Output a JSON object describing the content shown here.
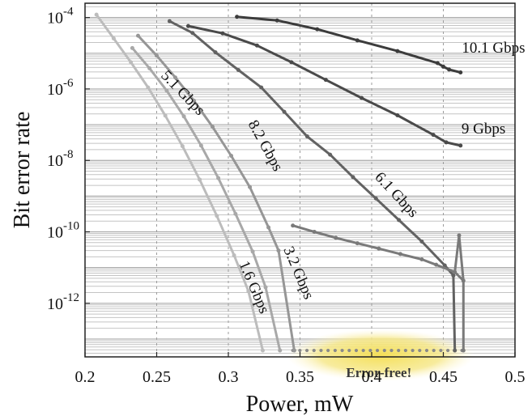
{
  "chart_data": {
    "type": "line",
    "title": "",
    "xlabel": "Power, mW",
    "ylabel": "Bit error rate",
    "xlim": [
      0.2,
      0.5
    ],
    "ylim_log10": [
      -13.5,
      -3.6
    ],
    "x_ticks": [
      {
        "value": 0.2,
        "label": "0.2"
      },
      {
        "value": 0.25,
        "label": "0.25"
      },
      {
        "value": 0.3,
        "label": "0.3"
      },
      {
        "value": 0.35,
        "label": "0.35"
      },
      {
        "value": 0.4,
        "label": "0.4"
      },
      {
        "value": 0.45,
        "label": "0.45"
      },
      {
        "value": 0.5,
        "label": "0.5"
      }
    ],
    "y_ticks": [
      {
        "log10": -4,
        "base": "10",
        "exponent": "-4"
      },
      {
        "log10": -6,
        "base": "10",
        "exponent": "-6"
      },
      {
        "log10": -8,
        "base": "10",
        "exponent": "-8"
      },
      {
        "log10": -10,
        "base": "10",
        "exponent": "-10"
      },
      {
        "log10": -12,
        "base": "10",
        "exponent": "-12"
      }
    ],
    "y_scale": "log",
    "grid": true,
    "colors": {
      "frame": "#222222",
      "grid_major": "#aaaaaa",
      "grid_minor": "#c4c4c4",
      "highlight": "#f5e36a"
    },
    "series": [
      {
        "name": "10.1 Gbps",
        "color": "#3c3c3c",
        "x": [
          0.306,
          0.334,
          0.362,
          0.39,
          0.418,
          0.446,
          0.45,
          0.454,
          0.462
        ],
        "y": [
          0.000105,
          8.3e-05,
          4.7e-05,
          2.3e-05,
          1.15e-05,
          5.3e-06,
          4.2e-06,
          3.5e-06,
          2.9e-06
        ]
      },
      {
        "name": "9 Gbps",
        "color": "#4a4a4a",
        "x": [
          0.272,
          0.296,
          0.32,
          0.344,
          0.368,
          0.393,
          0.418,
          0.443,
          0.452,
          0.462
        ],
        "y": [
          5.8e-05,
          3.6e-05,
          1.65e-05,
          5.6e-06,
          1.8e-06,
          5.6e-07,
          1.83e-07,
          5.2e-08,
          3.2e-08,
          2.6e-08
        ]
      },
      {
        "name": "8.2 Gbps",
        "color": "#626262",
        "x": [
          0.259,
          0.275,
          0.291,
          0.307,
          0.323,
          0.339,
          0.355,
          0.371,
          0.387,
          0.403,
          0.419,
          0.435,
          0.451,
          0.457
        ],
        "y": [
          7.9e-05,
          3.7e-05,
          1.06e-05,
          3.4e-06,
          1.1e-06,
          2.3e-07,
          4.7e-08,
          1.45e-08,
          3.4e-09,
          8.6e-10,
          2.14e-10,
          5.35e-11,
          1.15e-11,
          6e-12
        ]
      },
      {
        "name": "6.1 Gbps",
        "color": "#7a7a7a",
        "x": [
          0.345,
          0.36,
          0.375,
          0.39,
          0.405,
          0.42,
          0.435,
          0.445,
          0.458,
          0.464
        ],
        "y": [
          1.5e-10,
          1e-10,
          6.8e-11,
          4.8e-11,
          3.4e-11,
          2.4e-11,
          1.7e-11,
          1.2e-11,
          7.5e-12,
          4.3e-12
        ]
      },
      {
        "name": "5.1 Gbps",
        "color": "#969696",
        "x": [
          0.237,
          0.25,
          0.263,
          0.276,
          0.289,
          0.302,
          0.315,
          0.328,
          0.335
        ],
        "y": [
          3.1e-05,
          8.6e-06,
          2.1e-06,
          4.7e-07,
          8.7e-08,
          1.35e-08,
          1.8e-09,
          1.33e-10,
          3e-11
        ]
      },
      {
        "name": "3.2 Gbps",
        "color": "#a8a8a8",
        "x": [
          0.233,
          0.245,
          0.257,
          0.269,
          0.281,
          0.293,
          0.305,
          0.317,
          0.326
        ],
        "y": [
          1.4e-05,
          3.8e-06,
          9e-07,
          1.7e-07,
          2.6e-08,
          3.2e-09,
          3.2e-10,
          2.8e-11,
          2.8e-12
        ]
      },
      {
        "name": "1.6 Gbps",
        "color": "#bcbcbc",
        "x": [
          0.208,
          0.22,
          0.232,
          0.244,
          0.256,
          0.268,
          0.28,
          0.292,
          0.304,
          0.314
        ],
        "y": [
          0.00012,
          2.6e-05,
          5.6e-06,
          1.1e-06,
          1.8e-07,
          2.5e-08,
          2.9e-09,
          2.8e-10,
          2.2e-11,
          2.2e-12
        ]
      }
    ],
    "error_free": {
      "label": "Error-free!",
      "x_range": [
        0.345,
        0.463
      ]
    },
    "series_labels": [
      {
        "text": "10.1 Gbps",
        "x": 0.485,
        "log10": -4.98,
        "rotate": 0
      },
      {
        "text": "9 Gbps",
        "x": 0.478,
        "log10": -7.25,
        "rotate": 0
      },
      {
        "text": "8.2 Gbps",
        "x": 0.323,
        "log10": -7.65,
        "rotate": 61
      },
      {
        "text": "6.1 Gbps",
        "x": 0.415,
        "log10": -9.05,
        "rotate": 47
      },
      {
        "text": "5.1 Gbps",
        "x": 0.266,
        "log10": -6.2,
        "rotate": 46
      },
      {
        "text": "3.2 Gbps",
        "x": 0.346,
        "log10": -11.2,
        "rotate": 67
      },
      {
        "text": "1.6 Gbps",
        "x": 0.315,
        "log10": -11.6,
        "rotate": 67
      }
    ]
  }
}
